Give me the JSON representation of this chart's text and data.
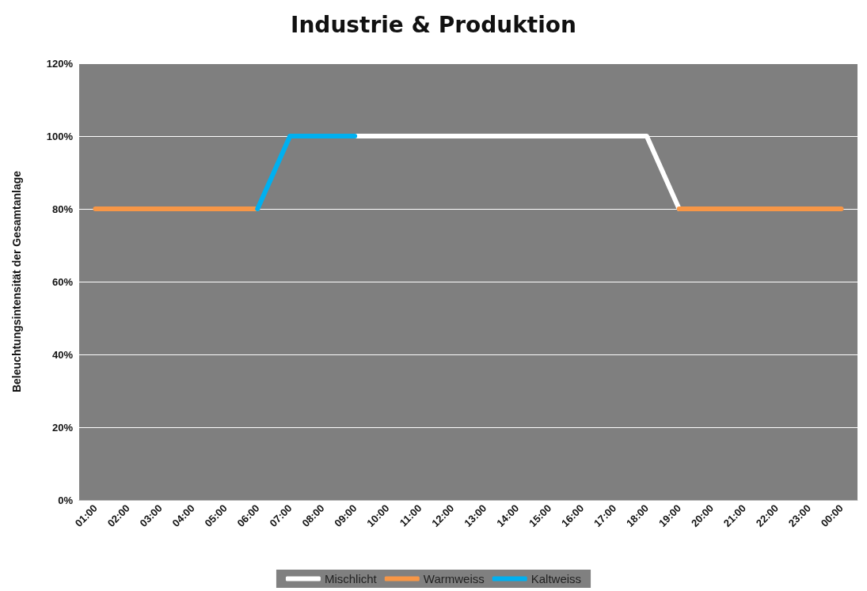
{
  "chart_data": {
    "type": "line",
    "title": "Industrie & Produktion",
    "ylabel": "Beleuchtungsintensität der Gesamtanlage",
    "categories": [
      "01:00",
      "02:00",
      "03:00",
      "04:00",
      "05:00",
      "06:00",
      "07:00",
      "08:00",
      "09:00",
      "10:00",
      "11:00",
      "12:00",
      "13:00",
      "14:00",
      "15:00",
      "16:00",
      "17:00",
      "18:00",
      "19:00",
      "20:00",
      "21:00",
      "22:00",
      "23:00",
      "00:00"
    ],
    "series": [
      {
        "name": "Mischlicht",
        "color": "#ffffff",
        "values": [
          null,
          null,
          null,
          null,
          null,
          null,
          null,
          null,
          100,
          100,
          100,
          100,
          100,
          100,
          100,
          100,
          100,
          100,
          80,
          null,
          null,
          null,
          null,
          null
        ]
      },
      {
        "name": "Warmweiss",
        "color": "#f79646",
        "values": [
          80,
          80,
          80,
          80,
          80,
          80,
          null,
          null,
          null,
          null,
          null,
          null,
          null,
          null,
          null,
          null,
          null,
          null,
          80,
          80,
          80,
          80,
          80,
          80
        ]
      },
      {
        "name": "Kaltweiss",
        "color": "#00b0f0",
        "values": [
          null,
          null,
          null,
          null,
          null,
          80,
          100,
          100,
          100,
          null,
          null,
          null,
          null,
          null,
          null,
          null,
          null,
          null,
          null,
          null,
          null,
          null,
          null,
          null
        ]
      }
    ],
    "ylim": [
      0,
      120
    ],
    "yticks": [
      {
        "value": 0,
        "label": "0%"
      },
      {
        "value": 20,
        "label": "20%"
      },
      {
        "value": 40,
        "label": "40%"
      },
      {
        "value": 60,
        "label": "60%"
      },
      {
        "value": 80,
        "label": "80%"
      },
      {
        "value": 100,
        "label": "100%"
      },
      {
        "value": 120,
        "label": "120%"
      }
    ],
    "grid": "y",
    "legend": "bottom",
    "marker": "none",
    "line_style": "solid"
  }
}
